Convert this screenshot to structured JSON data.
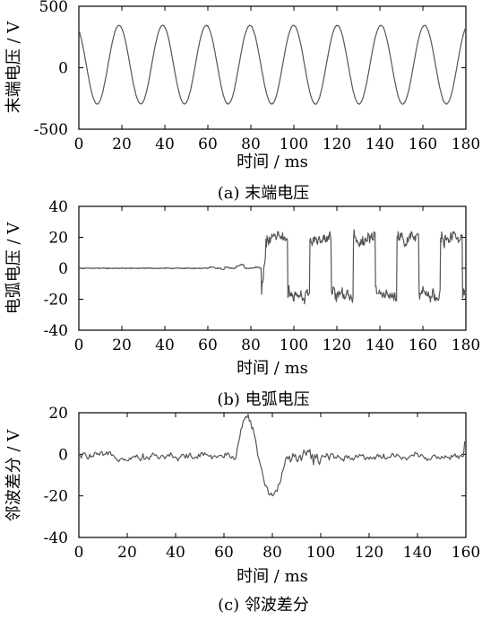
{
  "chart_data": [
    {
      "type": "line",
      "caption": "(a)  末端电压",
      "xlabel": "时间 / ms",
      "ylabel": "末端电压 / V",
      "xlim": [
        0,
        180
      ],
      "ylim": [
        -500,
        500
      ],
      "xticks": [
        0,
        20,
        40,
        60,
        80,
        100,
        120,
        140,
        160,
        180
      ],
      "yticks": [
        500,
        0,
        -500
      ],
      "series": [
        {
          "kind": "sine",
          "amplitude": 320,
          "offset": 25,
          "period_ms": 20.3,
          "phase_ms": -6.7,
          "step_ms": 0.25,
          "color": "#555555"
        }
      ]
    },
    {
      "type": "line",
      "caption": "(b)  电弧电压",
      "xlabel": "时间 / ms",
      "ylabel": "电弧电压 / V",
      "xlim": [
        0,
        180
      ],
      "ylim": [
        -40,
        40
      ],
      "xticks": [
        0,
        20,
        40,
        60,
        80,
        100,
        120,
        140,
        160,
        180
      ],
      "yticks": [
        40,
        20,
        0,
        -20,
        -40
      ],
      "series": [
        {
          "kind": "arc",
          "quiet_until_ms": 85,
          "square_period_ms": 20.3,
          "square_start_ms": 87,
          "high": 19,
          "low": -17,
          "noise": 5,
          "step_ms": 0.25,
          "color": "#555555"
        }
      ]
    },
    {
      "type": "line",
      "caption": "(c)  邻波差分",
      "xlabel": "时间 / ms",
      "ylabel": "邻波差分 / V",
      "xlim": [
        0,
        160
      ],
      "ylim": [
        -40,
        20
      ],
      "xticks": [
        0,
        20,
        40,
        60,
        80,
        100,
        120,
        140,
        160
      ],
      "yticks": [
        20,
        0,
        -20,
        -40
      ],
      "series": [
        {
          "kind": "diff",
          "peak_ms": 70,
          "peak_value": 18,
          "trough_ms": 79,
          "trough_value": -20,
          "noise": 2.5,
          "step_ms": 0.5,
          "color": "#555555"
        }
      ]
    }
  ]
}
